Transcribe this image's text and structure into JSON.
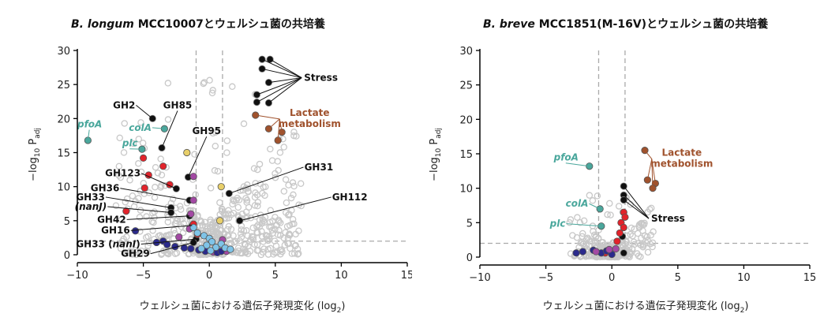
{
  "chart_data": [
    {
      "type": "scatter",
      "title_species": "B. longum",
      "title_rest": " MCC10007とウェルシュ菌の共培養",
      "xlabel": "ウェルシュ菌における遺伝子発現変化 (log",
      "xlabel_sub": "2",
      "xlabel_end": ")",
      "ylabel_pre": "−log",
      "ylabel_sub1": "10",
      "ylabel_mid": " P",
      "ylabel_sub2": "adj",
      "xlim": [
        -10,
        15
      ],
      "ylim": [
        0,
        30
      ],
      "xticks": [
        -10,
        -5,
        0,
        5,
        10,
        15
      ],
      "yticks": [
        0,
        5,
        10,
        15,
        20,
        25,
        30
      ],
      "thresholds": {
        "fc": [
          -1,
          1
        ],
        "p": 2
      },
      "colors": {
        "gray": "#c8c8c8",
        "black": "#111111",
        "red": "#e2232b",
        "purple": "#a349a4",
        "navy": "#2b2a8c",
        "lightblue": "#7fc4e8",
        "yellow": "#e8cf6a",
        "teal": "#4aa79c",
        "brown": "#a0522d"
      },
      "highlighted": [
        {
          "x": -4.3,
          "y": 20.0,
          "c": "black"
        },
        {
          "x": -3.6,
          "y": 15.7,
          "c": "black"
        },
        {
          "x": -1.6,
          "y": 11.4,
          "c": "black"
        },
        {
          "x": -2.5,
          "y": 9.7,
          "c": "black"
        },
        {
          "x": -1.5,
          "y": 8.0,
          "c": "black"
        },
        {
          "x": -2.9,
          "y": 6.9,
          "c": "black"
        },
        {
          "x": -2.9,
          "y": 6.2,
          "c": "black"
        },
        {
          "x": -1.5,
          "y": 5.7,
          "c": "black"
        },
        {
          "x": -1.3,
          "y": 4.3,
          "c": "black"
        },
        {
          "x": -1.0,
          "y": 2.3,
          "c": "black"
        },
        {
          "x": -1.2,
          "y": 1.8,
          "c": "black"
        },
        {
          "x": 1.5,
          "y": 9.0,
          "c": "black"
        },
        {
          "x": 2.3,
          "y": 5.0,
          "c": "black"
        },
        {
          "x": 4.0,
          "y": 28.7,
          "c": "black"
        },
        {
          "x": 4.6,
          "y": 28.7,
          "c": "black"
        },
        {
          "x": 4.0,
          "y": 27.3,
          "c": "black"
        },
        {
          "x": 4.5,
          "y": 25.3,
          "c": "black"
        },
        {
          "x": 3.6,
          "y": 23.5,
          "c": "black"
        },
        {
          "x": 4.5,
          "y": 22.3,
          "c": "black"
        },
        {
          "x": 3.6,
          "y": 22.4,
          "c": "black"
        },
        {
          "x": 3.5,
          "y": 20.5,
          "c": "brown"
        },
        {
          "x": 4.5,
          "y": 18.5,
          "c": "brown"
        },
        {
          "x": 5.5,
          "y": 18.0,
          "c": "brown"
        },
        {
          "x": 5.2,
          "y": 16.8,
          "c": "brown"
        },
        {
          "x": -9.2,
          "y": 16.8,
          "c": "teal"
        },
        {
          "x": -5.1,
          "y": 15.5,
          "c": "teal"
        },
        {
          "x": -3.4,
          "y": 18.5,
          "c": "teal"
        },
        {
          "x": -5.0,
          "y": 14.2,
          "c": "red"
        },
        {
          "x": -3.5,
          "y": 13.0,
          "c": "red"
        },
        {
          "x": -4.6,
          "y": 11.7,
          "c": "red"
        },
        {
          "x": -4.9,
          "y": 9.8,
          "c": "red"
        },
        {
          "x": -3.0,
          "y": 10.3,
          "c": "red"
        },
        {
          "x": -6.3,
          "y": 6.4,
          "c": "red"
        },
        {
          "x": -1.2,
          "y": 4.5,
          "c": "red"
        },
        {
          "x": -0.9,
          "y": 3.0,
          "c": "red"
        },
        {
          "x": -1.2,
          "y": 11.5,
          "c": "purple"
        },
        {
          "x": -1.2,
          "y": 8.0,
          "c": "purple"
        },
        {
          "x": -1.4,
          "y": 6.0,
          "c": "purple"
        },
        {
          "x": -1.5,
          "y": 3.8,
          "c": "purple"
        },
        {
          "x": -2.3,
          "y": 2.6,
          "c": "purple"
        },
        {
          "x": 0.3,
          "y": 0.4,
          "c": "purple"
        },
        {
          "x": 1.0,
          "y": 2.2,
          "c": "purple"
        },
        {
          "x": 1.3,
          "y": 0.5,
          "c": "purple"
        },
        {
          "x": -5.6,
          "y": 3.5,
          "c": "navy"
        },
        {
          "x": -3.5,
          "y": 2.0,
          "c": "navy"
        },
        {
          "x": -3.2,
          "y": 1.5,
          "c": "navy"
        },
        {
          "x": -2.6,
          "y": 1.2,
          "c": "navy"
        },
        {
          "x": -1.9,
          "y": 1.0,
          "c": "navy"
        },
        {
          "x": -1.4,
          "y": 0.9,
          "c": "navy"
        },
        {
          "x": -0.8,
          "y": 0.7,
          "c": "navy"
        },
        {
          "x": -0.3,
          "y": 0.5,
          "c": "navy"
        },
        {
          "x": 0.6,
          "y": 0.3,
          "c": "navy"
        },
        {
          "x": 0.9,
          "y": 0.5,
          "c": "navy"
        },
        {
          "x": -4.0,
          "y": 1.8,
          "c": "navy"
        },
        {
          "x": -1.2,
          "y": 4.0,
          "c": "lightblue"
        },
        {
          "x": -0.9,
          "y": 3.2,
          "c": "lightblue"
        },
        {
          "x": -0.4,
          "y": 2.8,
          "c": "lightblue"
        },
        {
          "x": 0.0,
          "y": 2.4,
          "c": "lightblue"
        },
        {
          "x": 0.2,
          "y": 1.9,
          "c": "lightblue"
        },
        {
          "x": -0.2,
          "y": 1.4,
          "c": "lightblue"
        },
        {
          "x": 0.5,
          "y": 1.1,
          "c": "lightblue"
        },
        {
          "x": 0.9,
          "y": 1.6,
          "c": "lightblue"
        },
        {
          "x": 1.2,
          "y": 1.0,
          "c": "lightblue"
        },
        {
          "x": -0.6,
          "y": 0.9,
          "c": "lightblue"
        },
        {
          "x": 0.1,
          "y": 0.6,
          "c": "lightblue"
        },
        {
          "x": 1.6,
          "y": 0.8,
          "c": "lightblue"
        },
        {
          "x": -1.7,
          "y": 15.0,
          "c": "yellow"
        },
        {
          "x": 0.8,
          "y": 5.0,
          "c": "yellow"
        },
        {
          "x": 0.9,
          "y": 10.0,
          "c": "yellow"
        }
      ],
      "labels": [
        {
          "text": "GH2",
          "style": "black",
          "x": -7.3,
          "y": 21.5,
          "px": -4.3,
          "py": 20.0
        },
        {
          "text": "GH85",
          "style": "black",
          "x": -3.5,
          "y": 21.5,
          "px": -3.6,
          "py": 15.7
        },
        {
          "text": "GH95",
          "style": "black",
          "x": -1.3,
          "y": 17.7,
          "px": -1.6,
          "py": 11.4
        },
        {
          "text": "GH123",
          "style": "black",
          "x": -7.9,
          "y": 11.5,
          "px": -2.5,
          "py": 9.7
        },
        {
          "text": "GH36",
          "style": "black",
          "x": -9.0,
          "y": 9.3,
          "px": -1.5,
          "py": 8.0
        },
        {
          "text": "GH33",
          "style": "black",
          "x": -10.1,
          "y": 8.0,
          "px": -2.9,
          "py": 6.9
        },
        {
          "text": "(nanJ)",
          "style": "black-i",
          "x": -10.2,
          "y": 6.6,
          "px": -2.9,
          "py": 6.2
        },
        {
          "text": "GH42",
          "style": "black",
          "x": -8.5,
          "y": 4.7,
          "px": -1.5,
          "py": 5.7
        },
        {
          "text": "GH16",
          "style": "black",
          "x": -8.2,
          "y": 3.1,
          "px": -1.3,
          "py": 4.3
        },
        {
          "text": "GH33 (nanI)",
          "style": "black-mix",
          "x": -10.1,
          "y": 1.1,
          "px": -1.0,
          "py": 2.3
        },
        {
          "text": "GH29",
          "style": "black",
          "x": -6.7,
          "y": -0.3,
          "px": -1.2,
          "py": 1.8
        },
        {
          "text": "GH31",
          "style": "black",
          "x": 7.2,
          "y": 12.4,
          "px": 1.5,
          "py": 9.0
        },
        {
          "text": "GH112",
          "style": "black",
          "x": 9.3,
          "y": 8.0,
          "px": 2.3,
          "py": 5.0
        },
        {
          "text": "pfoA",
          "style": "teal",
          "x": -10.0,
          "y": 18.7,
          "px": -9.2,
          "py": 16.8
        },
        {
          "text": "colA",
          "style": "teal",
          "x": -6.1,
          "y": 18.2,
          "px": -3.4,
          "py": 18.5
        },
        {
          "text": "plc",
          "style": "teal",
          "x": -6.6,
          "y": 15.9,
          "px": -5.1,
          "py": 15.5
        }
      ],
      "stress_label": {
        "text": "Stress",
        "x": 7.0,
        "y": 26.0
      },
      "lactate_label": {
        "line1": "Lactate",
        "line2": "metabolism",
        "x": 7.6,
        "y": 20.4
      }
    },
    {
      "type": "scatter",
      "title_species": "B. breve",
      "title_rest": " MCC1851(M-16V)とウェルシュ菌の共培養",
      "xlabel": "ウェルシュ菌における遺伝子発現変化 (log",
      "xlabel_sub": "2",
      "xlabel_end": ")",
      "ylabel_pre": "−log",
      "ylabel_sub1": "10",
      "ylabel_mid": " P",
      "ylabel_sub2": "adj",
      "xlim": [
        -10,
        15
      ],
      "ylim": [
        0,
        30
      ],
      "xticks": [
        -10,
        -5,
        0,
        5,
        10,
        15
      ],
      "yticks": [
        0,
        5,
        10,
        15,
        20,
        25,
        30
      ],
      "thresholds": {
        "fc": [
          -1,
          1
        ],
        "p": 2
      },
      "highlighted": [
        {
          "x": -1.7,
          "y": 13.2,
          "c": "teal"
        },
        {
          "x": -0.9,
          "y": 7.0,
          "c": "teal"
        },
        {
          "x": -0.8,
          "y": 4.5,
          "c": "teal"
        },
        {
          "x": 2.5,
          "y": 15.5,
          "c": "brown"
        },
        {
          "x": 3.3,
          "y": 10.7,
          "c": "brown"
        },
        {
          "x": 2.7,
          "y": 11.2,
          "c": "brown"
        },
        {
          "x": 3.1,
          "y": 10.0,
          "c": "brown"
        },
        {
          "x": 0.9,
          "y": 10.3,
          "c": "black"
        },
        {
          "x": 0.9,
          "y": 9.0,
          "c": "black"
        },
        {
          "x": 0.9,
          "y": 8.3,
          "c": "black"
        },
        {
          "x": 0.8,
          "y": 3.0,
          "c": "black"
        },
        {
          "x": 0.9,
          "y": 0.6,
          "c": "black"
        },
        {
          "x": 0.9,
          "y": 6.5,
          "c": "red"
        },
        {
          "x": 1.0,
          "y": 5.8,
          "c": "red"
        },
        {
          "x": 0.7,
          "y": 5.0,
          "c": "red"
        },
        {
          "x": 0.9,
          "y": 4.3,
          "c": "red"
        },
        {
          "x": 0.6,
          "y": 3.5,
          "c": "red"
        },
        {
          "x": 0.4,
          "y": 2.3,
          "c": "red"
        },
        {
          "x": -0.5,
          "y": 0.6,
          "c": "red"
        },
        {
          "x": -2.7,
          "y": 0.6,
          "c": "navy"
        },
        {
          "x": -2.2,
          "y": 0.8,
          "c": "navy"
        },
        {
          "x": -1.4,
          "y": 1.0,
          "c": "navy"
        },
        {
          "x": -0.8,
          "y": 0.6,
          "c": "navy"
        },
        {
          "x": -0.4,
          "y": 0.9,
          "c": "navy"
        },
        {
          "x": 0.0,
          "y": 0.4,
          "c": "navy"
        },
        {
          "x": -1.2,
          "y": 0.8,
          "c": "purple"
        },
        {
          "x": -0.2,
          "y": 1.1,
          "c": "purple"
        },
        {
          "x": 0.3,
          "y": 1.2,
          "c": "purple"
        }
      ],
      "labels": [
        {
          "text": "pfoA",
          "style": "teal",
          "x": -4.4,
          "y": 14.0,
          "px": -1.7,
          "py": 13.2
        },
        {
          "text": "colA",
          "style": "teal",
          "x": -3.5,
          "y": 7.3,
          "px": -0.9,
          "py": 7.0
        },
        {
          "text": "plc",
          "style": "teal",
          "x": -4.7,
          "y": 4.4,
          "px": -0.8,
          "py": 4.5
        }
      ],
      "stress_label": {
        "text": "Stress",
        "x": 2.8,
        "y": 5.6
      },
      "lactate_label": {
        "line1": "Lactate",
        "line2": "metabolism",
        "x": 5.3,
        "y": 14.7
      }
    }
  ]
}
